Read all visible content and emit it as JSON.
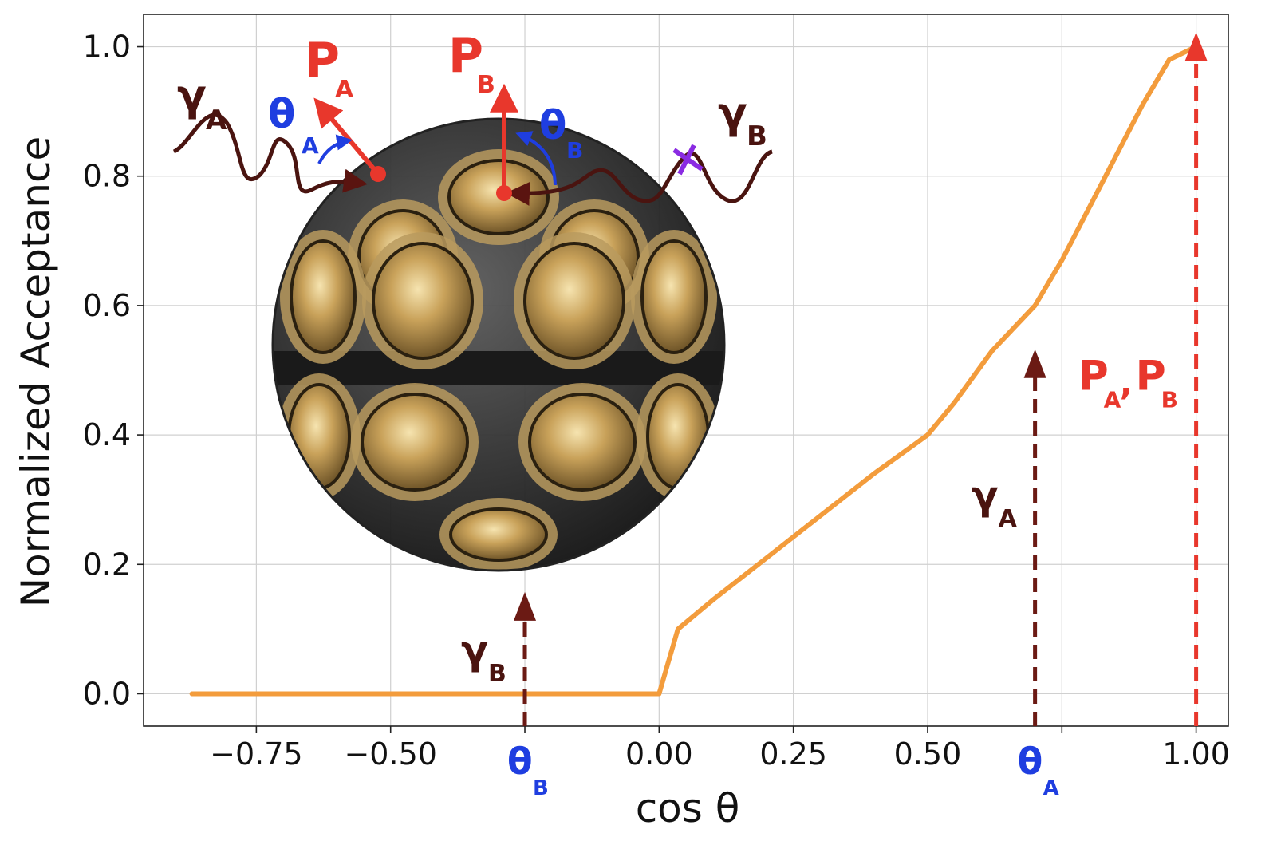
{
  "chart_data": {
    "type": "line",
    "title": "",
    "xlabel": "cos θ",
    "ylabel": "Normalized Acceptance",
    "xlim": [
      -0.96,
      1.06
    ],
    "ylim": [
      -0.05,
      1.05
    ],
    "xticks": [
      -0.75,
      -0.5,
      -0.25,
      0.0,
      0.25,
      0.5,
      0.75,
      1.0
    ],
    "xtick_labels": [
      "−0.75",
      "−0.50",
      "",
      "0.00",
      "0.25",
      "0.50",
      "",
      "1.00"
    ],
    "yticks": [
      0.0,
      0.2,
      0.4,
      0.6,
      0.8,
      1.0
    ],
    "ytick_labels": [
      "0.0",
      "0.2",
      "0.4",
      "0.6",
      "0.8",
      "1.0"
    ],
    "grid": true,
    "colors": {
      "curve": "#f39c3c",
      "red": "#e8372c",
      "dark": "#5a1410",
      "blue": "#1f3ee0",
      "purple": "#8a2be2"
    },
    "series": [
      {
        "name": "",
        "x": [
          -0.87,
          -0.6,
          -0.3,
          0.0,
          0.035,
          0.1,
          0.2,
          0.3,
          0.4,
          0.5,
          0.55,
          0.62,
          0.7,
          0.75,
          0.8,
          0.85,
          0.9,
          0.95,
          1.0
        ],
        "y": [
          0.0,
          0.0,
          0.0,
          0.0,
          0.1,
          0.145,
          0.21,
          0.275,
          0.34,
          0.4,
          0.45,
          0.53,
          0.6,
          0.67,
          0.75,
          0.83,
          0.91,
          0.98,
          1.0
        ]
      }
    ],
    "markers": [
      {
        "x": -0.25,
        "y_top": 0.145,
        "color": "#6b1a14",
        "photon_label": "γ",
        "photon_sub": "B",
        "angle_label": "θ",
        "angle_sub": "B"
      },
      {
        "x": 0.7,
        "y_top": 0.52,
        "color": "#6b1a14",
        "photon_label": "γ",
        "photon_sub": "A",
        "angle_label": "θ",
        "angle_sub": "A"
      },
      {
        "x": 1.0,
        "y_top": 1.01,
        "color": "#e8372c",
        "label": "P",
        "label_sub_a": "A",
        "label_sub_b": "B"
      }
    ]
  },
  "inset": {
    "gamma_a": "γ",
    "gamma_a_sub": "A",
    "gamma_b": "γ",
    "gamma_b_sub": "B",
    "p_a": "P",
    "p_a_sub": "A",
    "p_b": "P",
    "p_b_sub": "B",
    "theta_a": "θ",
    "theta_a_sub": "A",
    "theta_b": "θ",
    "theta_b_sub": "B"
  }
}
